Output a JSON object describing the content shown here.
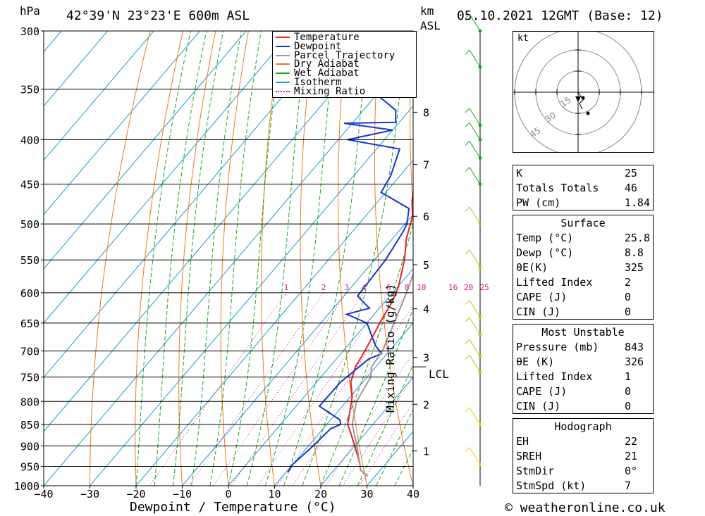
{
  "header": {
    "pressure_unit": "hPa",
    "location": "42°39'N  23°23'E  600m  ASL",
    "km_label": "km",
    "asl_label": "ASL",
    "datetime": "05.10.2021  12GMT  (Base: 12)"
  },
  "axes": {
    "xlabel": "Dewpoint / Temperature (°C)",
    "mixing_label": "Mixing Ratio (g/kg)",
    "lcl_label": "LCL",
    "credit": "© weatheronline.co.uk"
  },
  "legend": [
    {
      "name": "Temperature",
      "color": "#e8232a"
    },
    {
      "name": "Dewpoint",
      "color": "#1536d6"
    },
    {
      "name": "Parcel Trajectory",
      "color": "#9a9a9a"
    },
    {
      "name": "Dry Adiabat",
      "color": "#f07a1a"
    },
    {
      "name": "Wet Adiabat",
      "color": "#1aa81a"
    },
    {
      "name": "Isotherm",
      "color": "#1a9bd6"
    },
    {
      "name": "Mixing Ratio",
      "color": "#d01a8a"
    }
  ],
  "hodograph": {
    "unit_label": "kt",
    "ring_labels": [
      "15",
      "30",
      "45"
    ]
  },
  "chart_data": {
    "type": "line",
    "title": "42°39'N  23°23'E  600m  ASL",
    "xlabel": "Dewpoint / Temperature (°C)",
    "ylabel": "hPa",
    "x_ticks": [
      -40,
      -30,
      -20,
      -10,
      0,
      10,
      20,
      30,
      40
    ],
    "y_ticks": [
      300,
      350,
      400,
      450,
      500,
      550,
      600,
      650,
      700,
      750,
      800,
      850,
      900,
      950,
      1000
    ],
    "y_scale": "log",
    "xlim": [
      -40,
      40
    ],
    "ylim": [
      1000,
      300
    ],
    "km_ticks": [
      {
        "km": 1,
        "p": 912
      },
      {
        "km": 2,
        "p": 806
      },
      {
        "km": 3,
        "p": 712
      },
      {
        "km": 4,
        "p": 626
      },
      {
        "km": 5,
        "p": 557
      },
      {
        "km": 6,
        "p": 490
      },
      {
        "km": 7,
        "p": 427
      },
      {
        "km": 8,
        "p": 372
      }
    ],
    "mixing_ratio_labels": [
      "1",
      "2",
      "3",
      "4",
      "6",
      "8",
      "10",
      "16",
      "20",
      "25"
    ],
    "series": [
      {
        "name": "Temperature",
        "color": "#e8232a",
        "points": [
          [
            28.4,
            975
          ],
          [
            25.8,
            960
          ],
          [
            24.1,
            940
          ],
          [
            20.0,
            900
          ],
          [
            16.8,
            870
          ],
          [
            14.5,
            850
          ],
          [
            12.5,
            820
          ],
          [
            10.4,
            790
          ],
          [
            7.4,
            760
          ],
          [
            5.6,
            730
          ],
          [
            4.7,
            700
          ],
          [
            3.6,
            670
          ],
          [
            2.4,
            640
          ],
          [
            1.6,
            615
          ],
          [
            0.1,
            590
          ],
          [
            -3.5,
            550
          ],
          [
            -7.0,
            520
          ],
          [
            -9.8,
            490
          ],
          [
            -12.8,
            470
          ],
          [
            -16.0,
            445
          ],
          [
            -20.0,
            420
          ],
          [
            -24.6,
            395
          ],
          [
            -27.5,
            378
          ],
          [
            -31.5,
            355
          ],
          [
            -35.0,
            330
          ],
          [
            -39.5,
            300
          ]
        ]
      },
      {
        "name": "Dewpoint",
        "color": "#1536d6",
        "points": [
          [
            10.4,
            965
          ],
          [
            10.0,
            945
          ],
          [
            11.0,
            900
          ],
          [
            11.6,
            860
          ],
          [
            13.0,
            850
          ],
          [
            12.0,
            840
          ],
          [
            5.0,
            810
          ],
          [
            5.2,
            760
          ],
          [
            7.0,
            715
          ],
          [
            8.8,
            705
          ],
          [
            6.0,
            690
          ],
          [
            0.0,
            650
          ],
          [
            -6.0,
            635
          ],
          [
            -2.2,
            625
          ],
          [
            -7.0,
            605
          ],
          [
            -7.6,
            550
          ],
          [
            -9.0,
            510
          ],
          [
            -9.6,
            500
          ],
          [
            -12.0,
            480
          ],
          [
            -21.0,
            460
          ],
          [
            -22.0,
            440
          ],
          [
            -25.0,
            410
          ],
          [
            -38.0,
            400
          ],
          [
            -30.0,
            390
          ],
          [
            -41.8,
            383
          ],
          [
            -30.8,
            382
          ],
          [
            -33.0,
            370
          ],
          [
            -40.0,
            355
          ],
          [
            -40.8,
            340
          ],
          [
            -42.0,
            320
          ],
          [
            -43.0,
            300
          ]
        ]
      },
      {
        "name": "Parcel Trajectory",
        "color": "#9a9a9a",
        "points": [
          [
            28.4,
            975
          ],
          [
            25.8,
            960
          ],
          [
            20.5,
            900
          ],
          [
            15.5,
            850
          ],
          [
            12.2,
            800
          ],
          [
            10.8,
            750
          ],
          [
            9.1,
            730
          ],
          [
            8.5,
            700
          ],
          [
            5.9,
            650
          ],
          [
            3.0,
            600
          ],
          [
            -0.5,
            550
          ],
          [
            -4.3,
            500
          ],
          [
            -8.5,
            450
          ],
          [
            -13.5,
            400
          ],
          [
            -19.5,
            350
          ],
          [
            -26.5,
            300
          ]
        ]
      }
    ]
  },
  "sidebar": {
    "basic": [
      {
        "label": "K",
        "value": "25"
      },
      {
        "label": "Totals Totals",
        "value": "46"
      },
      {
        "label": "PW (cm)",
        "value": "1.84"
      }
    ],
    "surface": {
      "header": "Surface",
      "rows": [
        {
          "label": "Temp (°C)",
          "value": "25.8"
        },
        {
          "label": "Dewp (°C)",
          "value": "8.8"
        },
        {
          "label": "θE(K)",
          "value": "325"
        },
        {
          "label": "Lifted Index",
          "value": "2"
        },
        {
          "label": "CAPE (J)",
          "value": "0"
        },
        {
          "label": "CIN (J)",
          "value": "0"
        }
      ]
    },
    "most_unstable": {
      "header": "Most Unstable",
      "rows": [
        {
          "label": "Pressure (mb)",
          "value": "843"
        },
        {
          "label": "θE (K)",
          "value": "326"
        },
        {
          "label": "Lifted Index",
          "value": "1"
        },
        {
          "label": "CAPE (J)",
          "value": "0"
        },
        {
          "label": "CIN (J)",
          "value": "0"
        }
      ]
    },
    "hodograph": {
      "header": "Hodograph",
      "rows": [
        {
          "label": "EH",
          "value": "22"
        },
        {
          "label": "SREH",
          "value": "21"
        },
        {
          "label": "StmDir",
          "value": "0°"
        },
        {
          "label": "StmSpd (kt)",
          "value": "7"
        }
      ]
    }
  }
}
